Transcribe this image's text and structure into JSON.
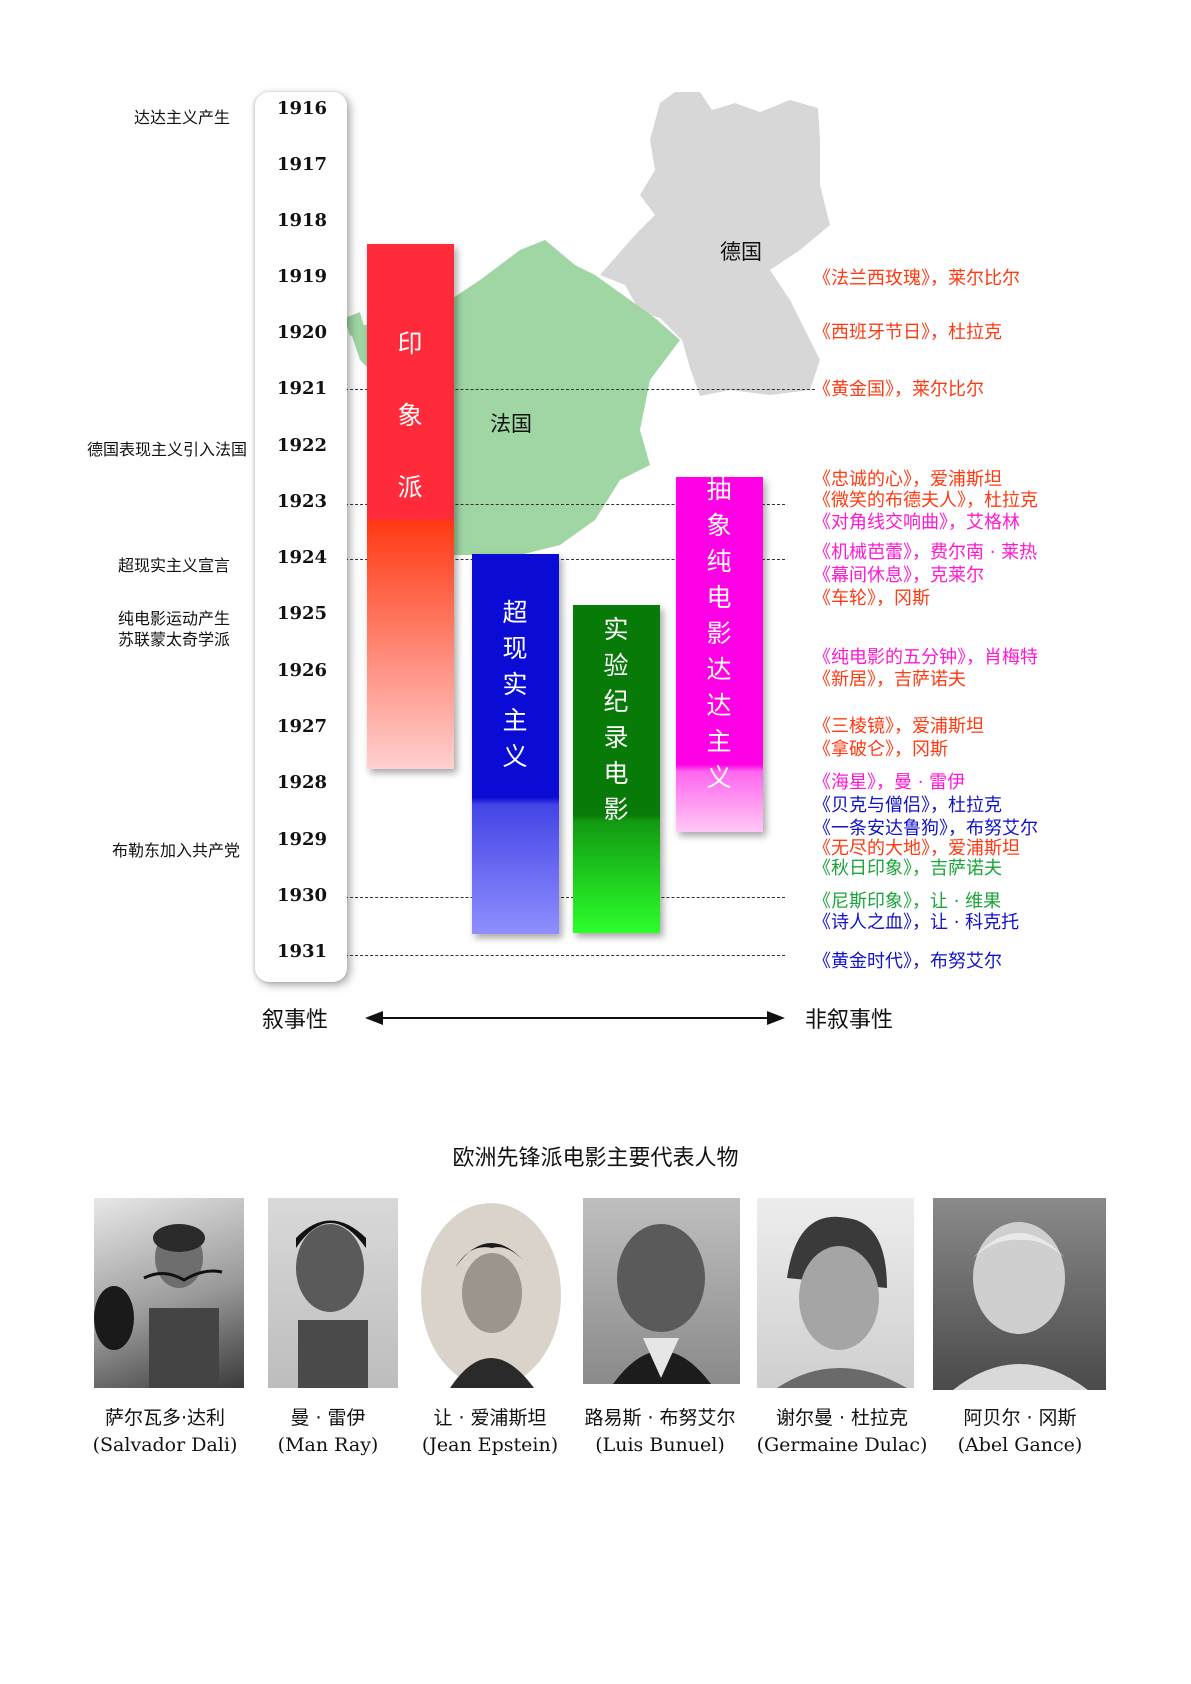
{
  "years": [
    "1916",
    "1917",
    "1918",
    "1919",
    "1920",
    "1921",
    "1922",
    "1923",
    "1924",
    "1925",
    "1926",
    "1927",
    "1928",
    "1929",
    "1930",
    "1931"
  ],
  "events": [
    {
      "text": "达达主义产生"
    },
    {
      "text": "德国表现主义引入法国"
    },
    {
      "text": "超现实主义宣言"
    },
    {
      "text": "纯电影运动产生"
    },
    {
      "text": "苏联蒙太奇学派"
    },
    {
      "text": "布勒东加入共产党"
    }
  ],
  "countries": {
    "germany": "德国",
    "france": "法国"
  },
  "movements": [
    {
      "name": "印象派",
      "chars": [
        "印",
        "象",
        "派"
      ],
      "color": "#ff2b3a",
      "fade_to": "#ffd0d0"
    },
    {
      "name": "超现实主义",
      "chars": [
        "超",
        "现",
        "实",
        "主",
        "义"
      ],
      "color": "#0b0bd6",
      "fade_to": "#8f8fff"
    },
    {
      "name": "实验纪录电影",
      "chars": [
        "实",
        "验",
        "纪",
        "录",
        "电",
        "影"
      ],
      "color": "#087a08",
      "fade_to": "#2cff2c"
    },
    {
      "name": "抽象纯电影达达主义",
      "chars": [
        "抽",
        "象",
        "纯",
        "电",
        "影",
        "达",
        "达",
        "主",
        "义"
      ],
      "color": "#ff00e6",
      "fade_to": "#ffc8f5"
    }
  ],
  "films": [
    {
      "text": "《法兰西玫瑰》，莱尔比尔",
      "color": "#ff3a12"
    },
    {
      "text": "《西班牙节日》，杜拉克",
      "color": "#ff3a12"
    },
    {
      "text": "《黄金国》，莱尔比尔",
      "color": "#ff3a12"
    },
    {
      "text": "《忠诚的心》，爱浦斯坦",
      "color": "#ff3a12"
    },
    {
      "text": "《微笑的布德夫人》，杜拉克",
      "color": "#ff3a12"
    },
    {
      "text": "《对角线交响曲》，艾格林",
      "color": "#ff18d2"
    },
    {
      "text": "《机械芭蕾》，费尔南 · 莱热",
      "color": "#ff18d2"
    },
    {
      "text": "《幕间休息》，克莱尔",
      "color": "#ff18d2"
    },
    {
      "text": "《车轮》，冈斯",
      "color": "#ff3a12"
    },
    {
      "text": "《纯电影的五分钟》，肖梅特",
      "color": "#ff18d2"
    },
    {
      "text": "《新居》，吉萨诺夫",
      "color": "#ff3a12"
    },
    {
      "text": "《三棱镜》，爱浦斯坦",
      "color": "#ff3a12"
    },
    {
      "text": "《拿破仑》，冈斯",
      "color": "#ff3a12"
    },
    {
      "text": "《海星》，曼 · 雷伊",
      "color": "#ff18d2"
    },
    {
      "text": "《贝克与僧侣》，杜拉克",
      "color": "#1212c8"
    },
    {
      "text": "《一条安达鲁狗》，布努艾尔",
      "color": "#1212c8"
    },
    {
      "text": "《无尽的大地》，爱浦斯坦",
      "color": "#ff3a12"
    },
    {
      "text": "《秋日印象》，吉萨诺夫",
      "color": "#1aa53b"
    },
    {
      "text": "《尼斯印象》，让 · 维果",
      "color": "#1aa53b"
    },
    {
      "text": "《诗人之血》，让 · 科克托",
      "color": "#1212c8"
    },
    {
      "text": "《黄金时代》，布努艾尔",
      "color": "#1212c8"
    }
  ],
  "axis": {
    "left": "叙事性",
    "right": "非叙事性"
  },
  "people_title": "欧洲先锋派电影主要代表人物",
  "people": [
    {
      "cn": "萨尔瓦多·达利",
      "en": "(Salvador Dali)"
    },
    {
      "cn": "曼 · 雷伊",
      "en": "(Man Ray)"
    },
    {
      "cn": "让 · 爱浦斯坦",
      "en": "(Jean Epstein)"
    },
    {
      "cn": "路易斯 · 布努艾尔",
      "en": "(Luis Bunuel)"
    },
    {
      "cn": "谢尔曼 · 杜拉克",
      "en": "(Germaine Dulac)"
    },
    {
      "cn": "阿贝尔 · 冈斯",
      "en": "(Abel Gance)"
    }
  ]
}
